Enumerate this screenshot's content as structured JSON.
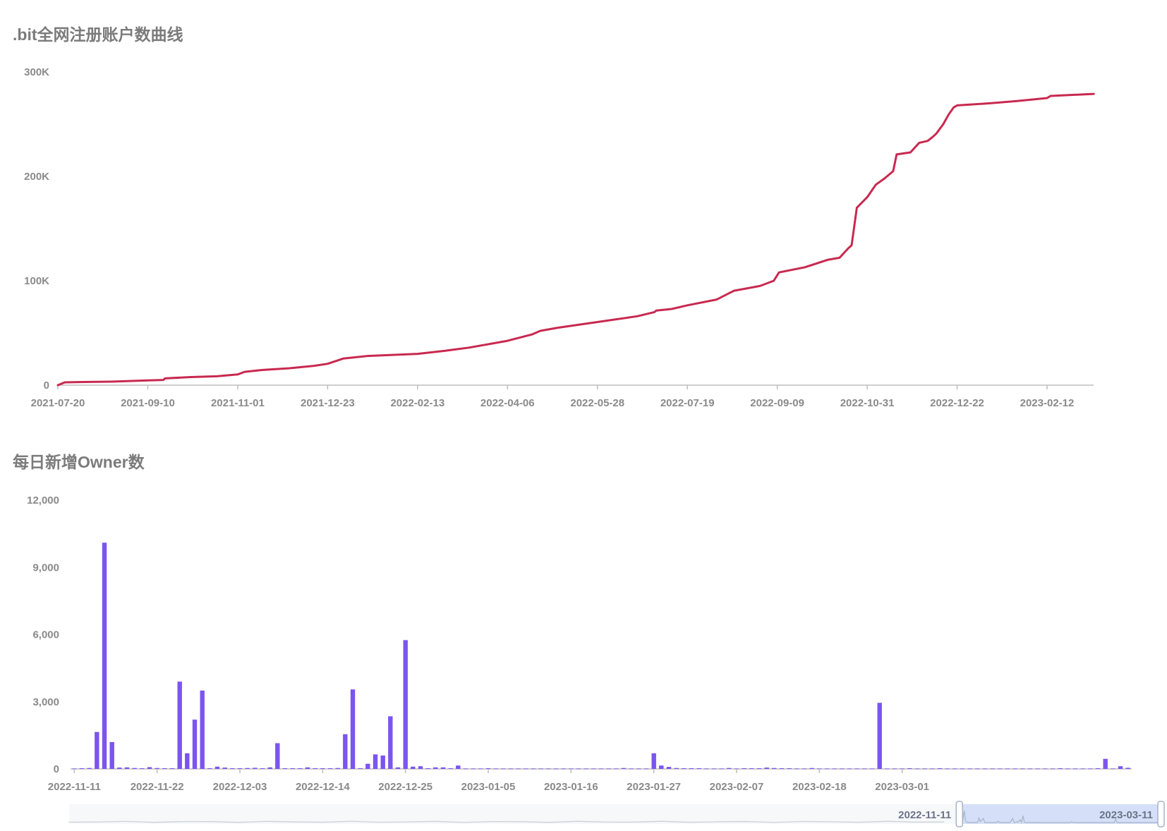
{
  "chart_data": [
    {
      "type": "line",
      "title": ".bit全网注册账户数曲线",
      "color": "#c8294f",
      "x_ticks": [
        "2021-07-20",
        "2021-09-10",
        "2021-11-01",
        "2021-12-23",
        "2022-02-13",
        "2022-04-06",
        "2022-05-28",
        "2022-07-19",
        "2022-09-09",
        "2022-10-31",
        "2022-12-22",
        "2023-02-12"
      ],
      "y_ticks": [
        "0",
        "100K",
        "200K",
        "300K"
      ],
      "ylim": [
        0,
        300000
      ],
      "x": [
        "2021-07-20",
        "2021-07-24",
        "2021-08-01",
        "2021-08-20",
        "2021-09-10",
        "2021-09-19",
        "2021-09-20",
        "2021-10-05",
        "2021-10-20",
        "2021-11-01",
        "2021-11-05",
        "2021-11-15",
        "2021-12-01",
        "2021-12-15",
        "2021-12-23",
        "2022-01-01",
        "2022-01-15",
        "2022-02-13",
        "2022-03-01",
        "2022-03-15",
        "2022-04-06",
        "2022-04-20",
        "2022-04-25",
        "2022-05-05",
        "2022-05-28",
        "2022-06-20",
        "2022-06-30",
        "2022-07-01",
        "2022-07-10",
        "2022-07-19",
        "2022-08-05",
        "2022-08-12",
        "2022-08-15",
        "2022-08-30",
        "2022-09-07",
        "2022-09-10",
        "2022-09-25",
        "2022-10-08",
        "2022-10-15",
        "2022-10-20",
        "2022-10-22",
        "2022-10-25",
        "2022-10-31",
        "2022-11-05",
        "2022-11-10",
        "2022-11-15",
        "2022-11-17",
        "2022-11-25",
        "2022-11-30",
        "2022-12-05",
        "2022-12-08",
        "2022-12-10",
        "2022-12-14",
        "2022-12-17",
        "2022-12-20",
        "2022-12-22",
        "2023-01-10",
        "2023-01-25",
        "2023-02-12",
        "2023-02-14",
        "2023-03-11"
      ],
      "values": [
        0,
        2700,
        3000,
        3400,
        4500,
        5000,
        6500,
        7800,
        8500,
        10300,
        12800,
        14500,
        16200,
        18500,
        20500,
        25500,
        28000,
        30000,
        33000,
        36000,
        42500,
        48500,
        52000,
        55000,
        60500,
        66000,
        70000,
        71500,
        73000,
        76500,
        82000,
        88000,
        90500,
        95000,
        100000,
        108000,
        113000,
        120000,
        122000,
        131000,
        134000,
        170000,
        180000,
        192000,
        198000,
        205000,
        221000,
        223000,
        232000,
        234000,
        238000,
        241000,
        250000,
        259000,
        266000,
        268000,
        270000,
        272000,
        275000,
        277000,
        279000
      ]
    },
    {
      "type": "bar",
      "title": "每日新增Owner数",
      "color": "#7b55ee",
      "x_ticks": [
        "2022-11-11",
        "2022-11-22",
        "2022-12-03",
        "2022-12-14",
        "2022-12-25",
        "2023-01-05",
        "2023-01-16",
        "2023-01-27",
        "2023-02-07",
        "2023-02-18",
        "2023-03-01"
      ],
      "y_ticks": [
        "0",
        "3,000",
        "6,000",
        "9,000",
        "12,000"
      ],
      "ylim": [
        0,
        12000
      ],
      "start_date": "2022-11-11",
      "values": [
        20,
        30,
        40,
        1650,
        10100,
        1200,
        60,
        70,
        40,
        30,
        80,
        40,
        30,
        30,
        3900,
        700,
        2200,
        3500,
        30,
        100,
        60,
        30,
        30,
        40,
        50,
        30,
        70,
        1150,
        30,
        30,
        30,
        70,
        30,
        30,
        30,
        40,
        1550,
        3550,
        30,
        230,
        650,
        600,
        2350,
        70,
        5750,
        100,
        120,
        30,
        70,
        70,
        30,
        150,
        20,
        20,
        20,
        30,
        20,
        20,
        20,
        20,
        20,
        20,
        20,
        20,
        20,
        20,
        20,
        20,
        20,
        20,
        20,
        20,
        20,
        40,
        20,
        20,
        20,
        700,
        150,
        90,
        40,
        30,
        30,
        30,
        20,
        20,
        20,
        40,
        20,
        30,
        30,
        30,
        60,
        40,
        30,
        30,
        20,
        20,
        40,
        20,
        20,
        20,
        20,
        20,
        20,
        20,
        20,
        2950,
        20,
        20,
        20,
        30,
        20,
        20,
        20,
        30,
        20,
        20,
        20,
        20,
        20,
        20,
        20,
        20,
        20,
        20,
        20,
        20,
        20,
        20,
        20,
        30,
        20,
        20,
        20,
        20,
        30,
        450,
        20,
        120,
        50
      ],
      "zoom": {
        "start_label": "2022-11-11",
        "end_label": "2023-03-11",
        "start_fraction": 0.812,
        "end_fraction": 1.0
      }
    }
  ]
}
